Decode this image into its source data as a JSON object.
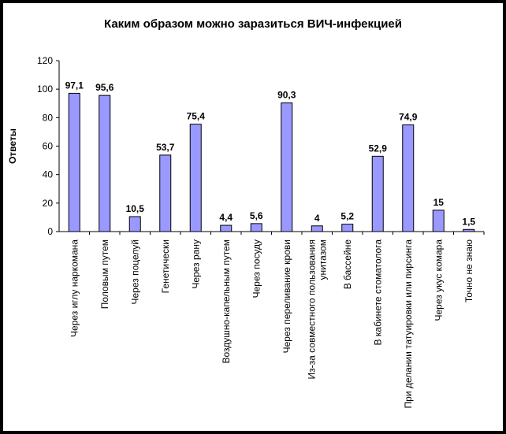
{
  "chart_data": {
    "type": "bar",
    "title": "Каким образом можно заразиться ВИЧ-инфекцией",
    "ylabel": "Ответы",
    "xlabel": "",
    "ylim": [
      0,
      120
    ],
    "yticks": [
      0,
      20,
      40,
      60,
      80,
      100,
      120
    ],
    "grid": false,
    "legend": "none",
    "bar_color": "#9999ff",
    "categories": [
      [
        "Через иглу наркомана"
      ],
      [
        "Половым путем"
      ],
      [
        "Через поцелуй"
      ],
      [
        "Генетически"
      ],
      [
        "Через рану"
      ],
      [
        "Воздушно-капельным путем"
      ],
      [
        "Через посуду"
      ],
      [
        "Через переливание крови"
      ],
      [
        "Из-за совместного пользования",
        "унитазом"
      ],
      [
        "В бассейне"
      ],
      [
        "В кабинете стоматолога"
      ],
      [
        "При делании татуировки или пирсинга"
      ],
      [
        "Через укус комара"
      ],
      [
        "Точно не знаю"
      ]
    ],
    "values": [
      97.1,
      95.6,
      10.5,
      53.7,
      75.4,
      4.4,
      5.6,
      90.3,
      4,
      5.2,
      52.9,
      74.9,
      15,
      1.5
    ],
    "value_labels": [
      "97,1",
      "95,6",
      "10,5",
      "53,7",
      "75,4",
      "4,4",
      "5,6",
      "90,3",
      "4",
      "5,2",
      "52,9",
      "74,9",
      "15",
      "1,5"
    ]
  }
}
